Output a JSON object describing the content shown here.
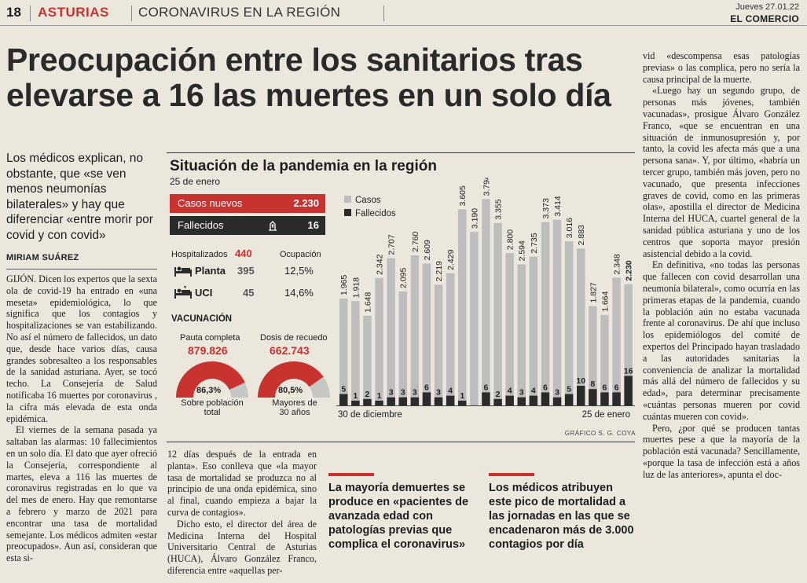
{
  "header": {
    "page_number": "18",
    "section": "ASTURIAS",
    "subsection": "CORONAVIRUS EN LA REGIÓN",
    "date": "Jueves 27.01.22",
    "newspaper": "EL COMERCIO"
  },
  "headline": "Preocupación entre los sanitarios tras elevarse a 16 las muertes en un solo día",
  "lead": "Los médicos explican, no obstante, que «se ven menos neumonías bilaterales» y hay que diferenciar «entre morir por covid y con covid»",
  "author": "MIRIAM SUÁREZ",
  "body_col1": [
    "GIJÓN. Dicen los expertos que la sexta ola de covid-19 ha entrado en «una meseta» epidemiológica, lo que significa que los contagios y hospitalizaciones se van estabilizando. No así el número de fallecidos, un dato que, desde hace varios días, causa grandes sobresalteo a los responsables de la sanidad asturiana. Ayer, se tocó techo. La Consejería de Salud notificaba 16 muertes por coronavirus , la cifra más elevada de esta onda epidémica.",
    "El viernes de la semana pasada ya saltaban las alarmas: 10 fallecimientos en un solo día. El dato que ayer ofreció la Consejería, correspondiente al martes, eleva a 116 las muertes de coronavirus registradas en lo que va del mes de enero. Hay que remontarse a febrero y marzo de 2021 para encontrar una tasa de mortalidad semejante. Los médicos admiten «estar preocupados». Aun así, consideran que esta si-"
  ],
  "body_col2": [
    "12 días después de la entrada en planta». Eso conlleva que «la mayor tasa de mortalidad se produzca no al principio de una onda epidémica, sino al final, cuando empieza a bajar la curva de contagios».",
    "Dicho esto, el director del área de Medicina Interna del Hospital Universitario Central de Asturias (HUCA), Álvaro González Franco, diferencia entre «aquellas per-"
  ],
  "body_right": [
    "vid «descompensa esas patologías previas» o las complica, pero no sería la causa principal de la muerte.",
    "«Luego hay un segundo grupo, de personas más jóvenes, también vacunadas», prosigue Álvaro González Franco, «que se encuentran en una situación de inmunosupresión y, por tanto, la covid les afecta más que a una persona sana». Y, por último, «habría un tercer grupo, también más joven, pero no vacunado, que presenta infecciones graves de covid, como en las primeras olas», apostilla el director de Medicina Interna del HUCA, cuartel general de la sanidad pública asturiana y uno de los centros que soporta mayor presión asistencial debido a la covid.",
    "En definitiva, «no todas las personas que fallecen con covid desarrollan una neumonía bilateral», como ocurría en las primeras etapas de la pandemia, cuando la población aún no estaba vacunada frente al coronavirus. De ahí que incluso los epidemiólogos del comité de expertos del Principado hayan trasladado a las autoridades sanitarias la conveniencia de analizar la mortalidad más allá del número de fallecidos y su edad», para determinar precisamente «cuántas personas mueren por covid cuántas mueren con covid».",
    "Pero, ¿por qué se producen tantas muertes pese a que la mayoría de la población está vacunada? Sencillamente, «porque la tasa de infección está a años luz de las anteriores», apunta el doc-"
  ],
  "pull_quotes": [
    "La mayoría demuertes se produce en «pacientes de avanzada edad con patologías previas que complica el coronavirus»",
    "Los médicos atribuyen este pico de mortalidad a las jornadas en las que se encadenaron más de 3.000 contagios por día"
  ],
  "infographic": {
    "title": "Situación de la pandemia en la región",
    "date": "25 de enero",
    "new_cases_label": "Casos nuevos",
    "new_cases_value": "2.230",
    "deaths_label": "Fallecidos",
    "deaths_value": "16",
    "hosp_label": "Hospitalizados",
    "hosp_value": "440",
    "occupancy_label": "Ocupación",
    "rows": [
      {
        "label": "Planta",
        "value": "395",
        "occupancy": "12,5%"
      },
      {
        "label": "UCI",
        "value": "45",
        "occupancy": "14,6%"
      }
    ],
    "vaccination_label": "VACUNACIÓN",
    "gauges": [
      {
        "title": "Pauta completa",
        "value": "879.826",
        "percent_label": "86,3%",
        "fraction": 0.863,
        "caption1": "Sobre población",
        "caption2": "total"
      },
      {
        "title": "Dosis de recuedo",
        "value": "662.743",
        "percent_label": "80,5%",
        "fraction": 0.805,
        "caption1": "Mayores de",
        "caption2": "30 años"
      }
    ],
    "credit": "GRÁFICO S. G. COYA",
    "colors": {
      "accent": "#c8322f",
      "dark": "#2b2b2b",
      "bar_light": "#bdbdbd"
    }
  },
  "chart_data": {
    "type": "bar",
    "x_start_label": "30 de diciembre",
    "x_end_label": "25 de enero",
    "ylim": [
      0,
      3900
    ],
    "series": [
      {
        "name": "Casos",
        "values": [
          1965,
          1918,
          1648,
          2342,
          2707,
          2095,
          2760,
          2609,
          2219,
          2429,
          3605,
          3190,
          3794,
          3355,
          2800,
          2594,
          2735,
          3373,
          3414,
          3016,
          2883,
          1827,
          1664,
          2348,
          2230
        ],
        "labels": [
          "1.965",
          "1.918",
          "1.648",
          "2.342",
          "2.707",
          "2.095",
          "2.760",
          "2.609",
          "2.219",
          "2.429",
          "3.605",
          "3.190",
          "3.794",
          "3.355",
          "2.800",
          "2.594",
          "2.735",
          "3.373",
          "3.414",
          "3.016",
          "2.883",
          "1.827",
          "1.664",
          "2.348",
          "2.230"
        ]
      },
      {
        "name": "Fallecidos",
        "values": [
          5,
          1,
          2,
          1,
          3,
          3,
          3,
          6,
          3,
          4,
          1,
          null,
          6,
          2,
          4,
          3,
          4,
          6,
          3,
          5,
          10,
          8,
          6,
          6,
          16
        ],
        "labels": [
          "5",
          "1",
          "2",
          "1",
          "3",
          "3",
          "3",
          "6",
          "3",
          "4",
          "1",
          "",
          "6",
          "2",
          "4",
          "3",
          "4",
          "6",
          "3",
          "5",
          "10",
          "8",
          "6",
          "6",
          "16"
        ]
      }
    ],
    "legend": "top-left"
  }
}
